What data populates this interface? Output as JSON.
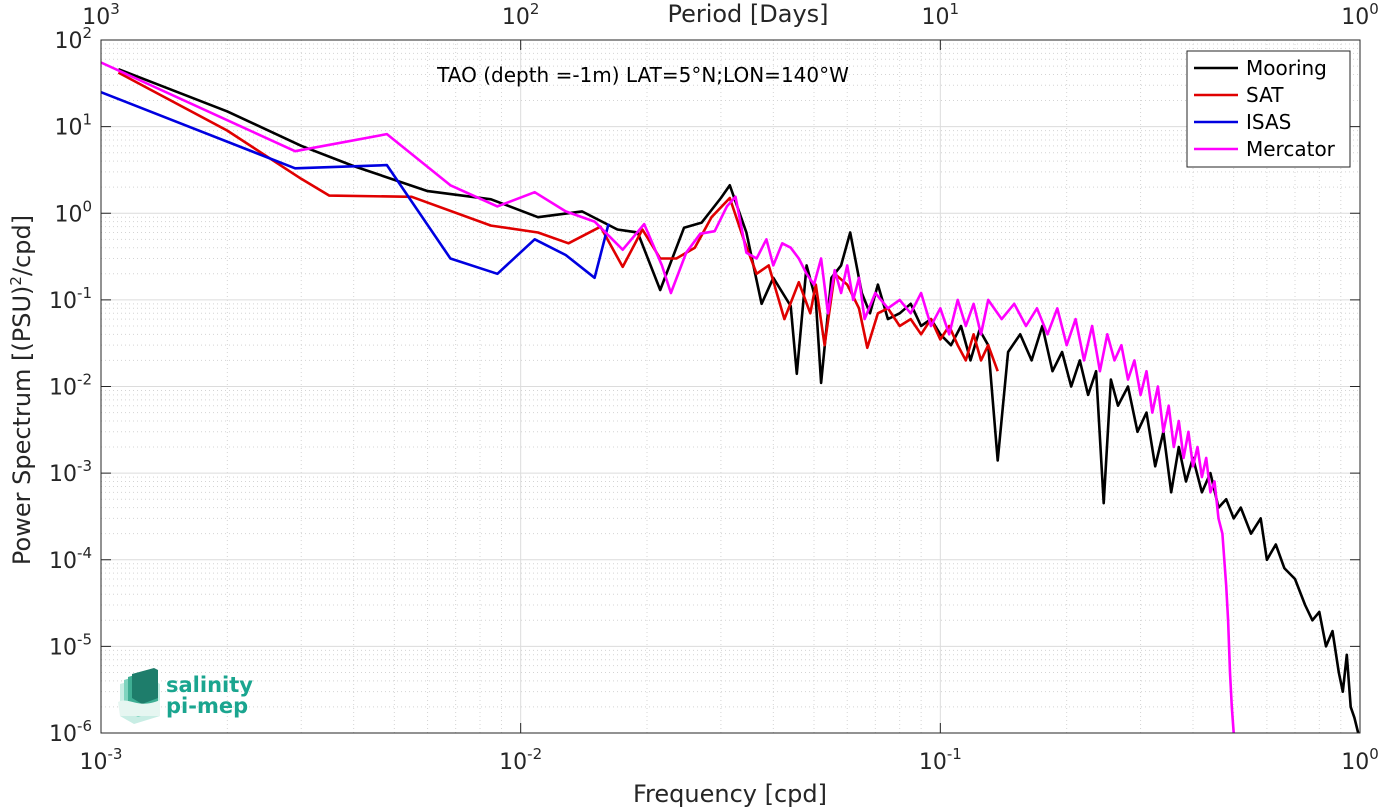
{
  "chart_data": {
    "type": "line",
    "annotation": "TAO (depth =-1m) LAT=5°N;LON=140°W",
    "xlabel": "Frequency [cpd]",
    "ylabel_main": "Power Spectrum [(PSU)",
    "ylabel_sup": "2",
    "ylabel_tail": "/cpd]",
    "x2label": "Period [Days]",
    "xscale": "log",
    "yscale": "log",
    "xlim": [
      0.001,
      1
    ],
    "ylim": [
      1e-06,
      100
    ],
    "grid": true,
    "legend_position": "top-right",
    "x_ticks": [
      {
        "value": 0.001,
        "base": "10",
        "exp": "-3"
      },
      {
        "value": 0.01,
        "base": "10",
        "exp": "-2"
      },
      {
        "value": 0.1,
        "base": "10",
        "exp": "-1"
      },
      {
        "value": 1,
        "base": "10",
        "exp": "0"
      }
    ],
    "y_ticks": [
      {
        "value": 1e-06,
        "base": "10",
        "exp": "-6"
      },
      {
        "value": 1e-05,
        "base": "10",
        "exp": "-5"
      },
      {
        "value": 0.0001,
        "base": "10",
        "exp": "-4"
      },
      {
        "value": 0.001,
        "base": "10",
        "exp": "-3"
      },
      {
        "value": 0.01,
        "base": "10",
        "exp": "-2"
      },
      {
        "value": 0.1,
        "base": "10",
        "exp": "-1"
      },
      {
        "value": 1,
        "base": "10",
        "exp": "0"
      },
      {
        "value": 10,
        "base": "10",
        "exp": "1"
      },
      {
        "value": 100,
        "base": "10",
        "exp": "2"
      }
    ],
    "x2_ticks": [
      {
        "value": 0.001,
        "base": "10",
        "exp": "3"
      },
      {
        "value": 0.01,
        "base": "10",
        "exp": "2"
      },
      {
        "value": 0.1,
        "base": "10",
        "exp": "1"
      },
      {
        "value": 1,
        "base": "10",
        "exp": "0"
      }
    ],
    "series": [
      {
        "name": "Mooring",
        "color": "#000000",
        "points": [
          [
            0.0011,
            46
          ],
          [
            0.002,
            15
          ],
          [
            0.003,
            6
          ],
          [
            0.004,
            3.5
          ],
          [
            0.006,
            1.8
          ],
          [
            0.0085,
            1.45
          ],
          [
            0.011,
            0.9
          ],
          [
            0.014,
            1.05
          ],
          [
            0.017,
            0.65
          ],
          [
            0.019,
            0.6
          ],
          [
            0.0215,
            0.13
          ],
          [
            0.0245,
            0.68
          ],
          [
            0.027,
            0.78
          ],
          [
            0.03,
            1.5
          ],
          [
            0.0315,
            2.1
          ],
          [
            0.0345,
            0.6
          ],
          [
            0.0375,
            0.09
          ],
          [
            0.04,
            0.18
          ],
          [
            0.044,
            0.085
          ],
          [
            0.0455,
            0.014
          ],
          [
            0.048,
            0.25
          ],
          [
            0.0505,
            0.1
          ],
          [
            0.052,
            0.011
          ],
          [
            0.055,
            0.18
          ],
          [
            0.058,
            0.25
          ],
          [
            0.061,
            0.6
          ],
          [
            0.065,
            0.12
          ],
          [
            0.068,
            0.07
          ],
          [
            0.071,
            0.15
          ],
          [
            0.075,
            0.06
          ],
          [
            0.08,
            0.07
          ],
          [
            0.085,
            0.09
          ],
          [
            0.09,
            0.05
          ],
          [
            0.095,
            0.06
          ],
          [
            0.1,
            0.04
          ],
          [
            0.106,
            0.03
          ],
          [
            0.112,
            0.05
          ],
          [
            0.118,
            0.02
          ],
          [
            0.124,
            0.045
          ],
          [
            0.13,
            0.03
          ],
          [
            0.137,
            0.0014
          ],
          [
            0.145,
            0.025
          ],
          [
            0.155,
            0.04
          ],
          [
            0.165,
            0.02
          ],
          [
            0.175,
            0.05
          ],
          [
            0.185,
            0.015
          ],
          [
            0.195,
            0.025
          ],
          [
            0.205,
            0.01
          ],
          [
            0.215,
            0.02
          ],
          [
            0.225,
            0.008
          ],
          [
            0.235,
            0.015
          ],
          [
            0.245,
            0.00045
          ],
          [
            0.255,
            0.012
          ],
          [
            0.265,
            0.006
          ],
          [
            0.28,
            0.01
          ],
          [
            0.295,
            0.003
          ],
          [
            0.31,
            0.005
          ],
          [
            0.325,
            0.0012
          ],
          [
            0.34,
            0.003
          ],
          [
            0.355,
            0.0006
          ],
          [
            0.37,
            0.002
          ],
          [
            0.385,
            0.0008
          ],
          [
            0.4,
            0.0015
          ],
          [
            0.42,
            0.0006
          ],
          [
            0.44,
            0.001
          ],
          [
            0.46,
            0.0004
          ],
          [
            0.48,
            0.0005
          ],
          [
            0.5,
            0.0003
          ],
          [
            0.52,
            0.0004
          ],
          [
            0.55,
            0.0002
          ],
          [
            0.58,
            0.0003
          ],
          [
            0.6,
            0.0001
          ],
          [
            0.63,
            0.00015
          ],
          [
            0.66,
            8e-05
          ],
          [
            0.7,
            6e-05
          ],
          [
            0.74,
            3e-05
          ],
          [
            0.77,
            2e-05
          ],
          [
            0.8,
            2.5e-05
          ],
          [
            0.83,
            1e-05
          ],
          [
            0.86,
            1.5e-05
          ],
          [
            0.89,
            5e-06
          ],
          [
            0.91,
            3e-06
          ],
          [
            0.93,
            8e-06
          ],
          [
            0.95,
            2e-06
          ],
          [
            0.97,
            1.5e-06
          ],
          [
            0.99,
            1e-06
          ]
        ]
      },
      {
        "name": "SAT",
        "color": "#e00000",
        "points": [
          [
            0.0011,
            42
          ],
          [
            0.002,
            9
          ],
          [
            0.003,
            2.5
          ],
          [
            0.0035,
            1.6
          ],
          [
            0.0055,
            1.55
          ],
          [
            0.0085,
            0.72
          ],
          [
            0.011,
            0.6
          ],
          [
            0.013,
            0.45
          ],
          [
            0.0155,
            0.7
          ],
          [
            0.0175,
            0.24
          ],
          [
            0.0195,
            0.65
          ],
          [
            0.0215,
            0.3
          ],
          [
            0.0235,
            0.3
          ],
          [
            0.026,
            0.4
          ],
          [
            0.0285,
            0.9
          ],
          [
            0.0315,
            1.5
          ],
          [
            0.034,
            0.5
          ],
          [
            0.0365,
            0.2
          ],
          [
            0.039,
            0.25
          ],
          [
            0.0425,
            0.06
          ],
          [
            0.046,
            0.16
          ],
          [
            0.049,
            0.07
          ],
          [
            0.0505,
            0.15
          ],
          [
            0.053,
            0.03
          ],
          [
            0.056,
            0.2
          ],
          [
            0.06,
            0.15
          ],
          [
            0.064,
            0.08
          ],
          [
            0.067,
            0.028
          ],
          [
            0.071,
            0.07
          ],
          [
            0.075,
            0.08
          ],
          [
            0.08,
            0.05
          ],
          [
            0.085,
            0.06
          ],
          [
            0.09,
            0.04
          ],
          [
            0.095,
            0.06
          ],
          [
            0.1,
            0.035
          ],
          [
            0.105,
            0.05
          ],
          [
            0.11,
            0.03
          ],
          [
            0.115,
            0.02
          ],
          [
            0.12,
            0.04
          ],
          [
            0.125,
            0.02
          ],
          [
            0.13,
            0.03
          ],
          [
            0.137,
            0.015
          ]
        ]
      },
      {
        "name": "ISAS",
        "color": "#0000e0",
        "points": [
          [
            0.001,
            25
          ],
          [
            0.0029,
            3.3
          ],
          [
            0.0048,
            3.6
          ],
          [
            0.0068,
            0.3
          ],
          [
            0.0088,
            0.2
          ],
          [
            0.0108,
            0.5
          ],
          [
            0.0128,
            0.33
          ],
          [
            0.015,
            0.18
          ],
          [
            0.0162,
            0.76
          ]
        ]
      },
      {
        "name": "Mercator",
        "color": "#ff00ff",
        "points": [
          [
            0.001,
            55
          ],
          [
            0.0029,
            5.2
          ],
          [
            0.0048,
            8.2
          ],
          [
            0.0068,
            2.1
          ],
          [
            0.0088,
            1.2
          ],
          [
            0.0108,
            1.75
          ],
          [
            0.0128,
            1.05
          ],
          [
            0.015,
            0.8
          ],
          [
            0.0175,
            0.38
          ],
          [
            0.0197,
            0.75
          ],
          [
            0.0217,
            0.25
          ],
          [
            0.0228,
            0.12
          ],
          [
            0.0248,
            0.35
          ],
          [
            0.0268,
            0.58
          ],
          [
            0.029,
            0.62
          ],
          [
            0.031,
            1.2
          ],
          [
            0.0325,
            1.55
          ],
          [
            0.0345,
            0.35
          ],
          [
            0.0365,
            0.3
          ],
          [
            0.0385,
            0.5
          ],
          [
            0.04,
            0.25
          ],
          [
            0.042,
            0.45
          ],
          [
            0.044,
            0.4
          ],
          [
            0.046,
            0.3
          ],
          [
            0.048,
            0.2
          ],
          [
            0.05,
            0.15
          ],
          [
            0.052,
            0.3
          ],
          [
            0.054,
            0.07
          ],
          [
            0.056,
            0.22
          ],
          [
            0.058,
            0.12
          ],
          [
            0.06,
            0.25
          ],
          [
            0.062,
            0.1
          ],
          [
            0.064,
            0.18
          ],
          [
            0.066,
            0.06
          ],
          [
            0.07,
            0.12
          ],
          [
            0.075,
            0.08
          ],
          [
            0.08,
            0.1
          ],
          [
            0.085,
            0.07
          ],
          [
            0.09,
            0.12
          ],
          [
            0.095,
            0.05
          ],
          [
            0.1,
            0.08
          ],
          [
            0.105,
            0.04
          ],
          [
            0.11,
            0.1
          ],
          [
            0.115,
            0.05
          ],
          [
            0.12,
            0.09
          ],
          [
            0.125,
            0.04
          ],
          [
            0.13,
            0.1
          ],
          [
            0.14,
            0.06
          ],
          [
            0.15,
            0.09
          ],
          [
            0.16,
            0.05
          ],
          [
            0.17,
            0.08
          ],
          [
            0.18,
            0.04
          ],
          [
            0.19,
            0.08
          ],
          [
            0.2,
            0.03
          ],
          [
            0.21,
            0.06
          ],
          [
            0.22,
            0.02
          ],
          [
            0.23,
            0.05
          ],
          [
            0.24,
            0.015
          ],
          [
            0.25,
            0.04
          ],
          [
            0.26,
            0.02
          ],
          [
            0.27,
            0.03
          ],
          [
            0.28,
            0.012
          ],
          [
            0.29,
            0.02
          ],
          [
            0.3,
            0.008
          ],
          [
            0.31,
            0.015
          ],
          [
            0.32,
            0.005
          ],
          [
            0.33,
            0.01
          ],
          [
            0.34,
            0.003
          ],
          [
            0.35,
            0.006
          ],
          [
            0.36,
            0.002
          ],
          [
            0.37,
            0.004
          ],
          [
            0.38,
            0.0015
          ],
          [
            0.39,
            0.003
          ],
          [
            0.4,
            0.0012
          ],
          [
            0.41,
            0.002
          ],
          [
            0.42,
            0.0009
          ],
          [
            0.43,
            0.0015
          ],
          [
            0.44,
            0.0006
          ],
          [
            0.45,
            0.0008
          ],
          [
            0.46,
            0.0003
          ],
          [
            0.47,
            0.0002
          ],
          [
            0.48,
            5e-05
          ],
          [
            0.485,
            2e-05
          ],
          [
            0.49,
            5e-06
          ],
          [
            0.495,
            2e-06
          ],
          [
            0.5,
            1e-06
          ]
        ]
      }
    ]
  },
  "logo": {
    "line1": "salinity",
    "line2": "pi-mep"
  }
}
